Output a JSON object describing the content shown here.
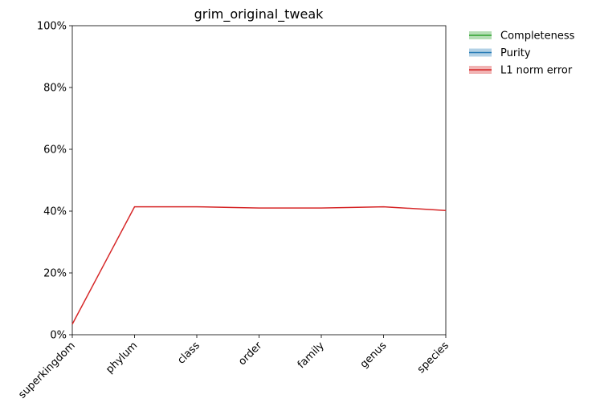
{
  "chart_data": {
    "type": "line",
    "title": "grim_original_tweak",
    "categories": [
      "superkingdom",
      "phylum",
      "class",
      "order",
      "family",
      "genus",
      "species"
    ],
    "series": [
      {
        "name": "Completeness",
        "color": "#2ca02c",
        "values": [
          null,
          null,
          null,
          null,
          null,
          null,
          null
        ]
      },
      {
        "name": "Purity",
        "color": "#1f77b4",
        "values": [
          null,
          null,
          null,
          null,
          null,
          null,
          null
        ]
      },
      {
        "name": "L1 norm error",
        "color": "#d62728",
        "values": [
          3.4,
          41.4,
          41.4,
          41.0,
          41.0,
          41.4,
          40.2
        ]
      }
    ],
    "ylim": [
      0,
      100
    ],
    "yticks": [
      {
        "value": 0,
        "label": "0%"
      },
      {
        "value": 20,
        "label": "20%"
      },
      {
        "value": 40,
        "label": "40%"
      },
      {
        "value": 60,
        "label": "60%"
      },
      {
        "value": 80,
        "label": "80%"
      },
      {
        "value": 100,
        "label": "100%"
      }
    ],
    "legend": "outside-upper-right"
  }
}
